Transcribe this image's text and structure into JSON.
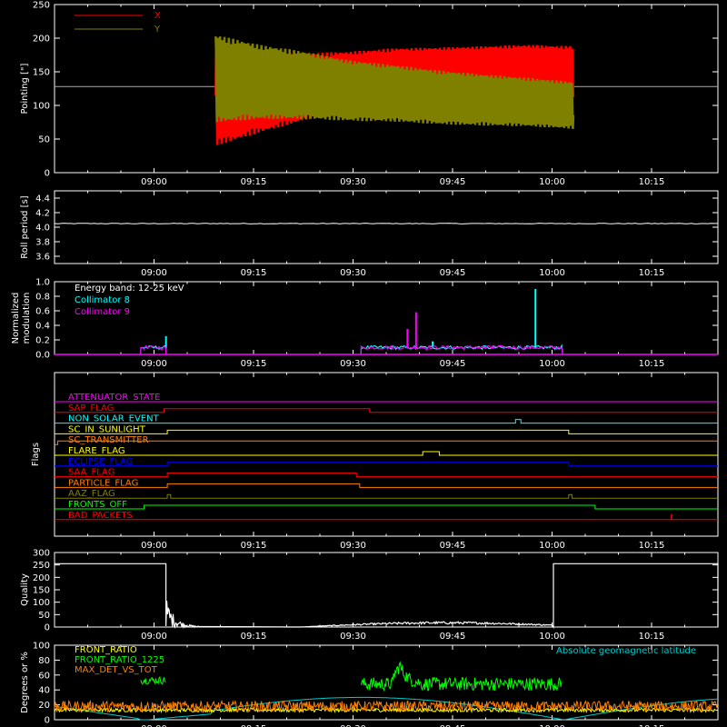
{
  "chart_data": [
    {
      "type": "line",
      "ylabel": "Pointing [\"]",
      "ylim": [
        0,
        250
      ],
      "yticks": [
        0,
        50,
        100,
        150,
        200,
        250
      ],
      "legend": [
        "X",
        "Y"
      ],
      "legend_colors": [
        "#ff0000",
        "#808000"
      ],
      "reference_line": 128,
      "series": [
        {
          "name": "X",
          "color": "#ff0000",
          "t_start_min": 9.3,
          "t_end_min": 63.2,
          "center": [
            115,
            120,
            128,
            140,
            150,
            153,
            155,
            155,
            150
          ],
          "amplitude": [
            75,
            60,
            50,
            40,
            35,
            33,
            33,
            35,
            38
          ]
        },
        {
          "name": "Y",
          "color": "#808000",
          "t_start_min": 9.3,
          "t_end_min": 63.2,
          "center": [
            140,
            135,
            130,
            122,
            118,
            112,
            108,
            105,
            100
          ],
          "amplitude": [
            65,
            55,
            50,
            45,
            42,
            40,
            38,
            36,
            35
          ]
        }
      ]
    },
    {
      "type": "line",
      "ylabel": "Roll period [s]",
      "ylim": [
        3.5,
        4.5
      ],
      "yticks": [
        "3.6",
        "3.8",
        "4.0",
        "4.2",
        "4.4"
      ],
      "series": [
        {
          "name": "",
          "color": "#ffffff",
          "value": 4.05
        }
      ]
    },
    {
      "type": "bar",
      "ylabel": "Normalized modulation",
      "ylim": [
        0,
        1
      ],
      "yticks": [
        "0.0",
        "0.2",
        "0.4",
        "0.6",
        "0.8",
        "1.0"
      ],
      "annotation": "Energy band: 12-25 keV",
      "series": [
        {
          "name": "Collimator 8",
          "color": "#00ffff",
          "windows": [
            [
              -2,
              1.8
            ],
            [
              31.2,
              61.6
            ]
          ],
          "spikes": [
            [
              1.8,
              0.25
            ],
            [
              42,
              0.18
            ],
            [
              57.5,
              0.9
            ],
            [
              50,
              0.12
            ]
          ]
        },
        {
          "name": "Collimator 9",
          "color": "#ff00ff",
          "windows": [
            [
              -2,
              1.8
            ],
            [
              31.2,
              61.6
            ]
          ],
          "spikes": [
            [
              39.5,
              0.58
            ],
            [
              38.2,
              0.35
            ],
            [
              51,
              0.12
            ]
          ]
        }
      ]
    },
    {
      "type": "line",
      "ylabel": "Flags",
      "flags": [
        {
          "name": "ATTENUATOR_STATE",
          "color": "#ff00ff",
          "transitions": []
        },
        {
          "name": "SAP_FLAG",
          "color": "#ff0000",
          "transitions": [
            1.5,
            32.5
          ]
        },
        {
          "name": "NON_SOLAR_EVENT",
          "color": "#00ffff",
          "transitions": [
            54.5,
            55.3
          ]
        },
        {
          "name": "SC_IN_SUNLIGHT",
          "color": "#ffff00",
          "transitions": [
            2,
            62.5
          ]
        },
        {
          "name": "SC_TRANSMITTER",
          "color": "#ff8000",
          "transitions": [
            -14.5
          ]
        },
        {
          "name": "FLARE_FLAG",
          "color": "#ffff00",
          "transitions": [
            40.5,
            43
          ]
        },
        {
          "name": "ECLIPSE_FLAG",
          "color": "#0000ff",
          "transitions": [
            2,
            62.5
          ]
        },
        {
          "name": "SAA_FLAG",
          "color": "#ff0000",
          "transitions": [
            2,
            30.5
          ]
        },
        {
          "name": "PARTICLE_FLAG",
          "color": "#ff8000",
          "transitions": [
            2,
            31
          ]
        },
        {
          "name": "AAZ_FLAG",
          "color": "#808000",
          "transitions": [
            2,
            2.5,
            62.5,
            63
          ]
        },
        {
          "name": "FRONTS_OFF",
          "color": "#00ff00",
          "transitions": [
            -1.5,
            66.5
          ]
        },
        {
          "name": "BAD_PACKETS",
          "color": "#ff0000",
          "transitions": []
        }
      ]
    },
    {
      "type": "area",
      "ylabel": "Quality",
      "ylim": [
        0,
        300
      ],
      "yticks": [
        0,
        50,
        100,
        150,
        200,
        250,
        300
      ],
      "series": [
        {
          "name": "",
          "color": "#ffffff",
          "high_before_min": 1.8,
          "high_after_min": 60.2,
          "high_value": 255
        }
      ]
    },
    {
      "type": "line",
      "ylabel": "Degrees or %",
      "ylim": [
        0,
        100
      ],
      "yticks": [
        0,
        20,
        40,
        60,
        80,
        100
      ],
      "annotation": "Absolute geomagnetic latitude",
      "series": [
        {
          "name": "FRONT_RATIO",
          "color": "#ffff00"
        },
        {
          "name": "FRONT_RATIO_1225",
          "color": "#00ff00"
        },
        {
          "name": "MAX_DET_VS_TOT",
          "color": "#ff8000"
        },
        {
          "name": "Absolute geomagnetic latitude",
          "color": "#00cccc"
        }
      ]
    }
  ],
  "x_axis": {
    "ticks": [
      "09:00",
      "09:15",
      "09:30",
      "09:45",
      "10:00",
      "10:15"
    ],
    "tick_minutes": [
      0,
      15,
      30,
      45,
      60,
      75
    ],
    "range_minutes": [
      -15,
      85
    ]
  }
}
